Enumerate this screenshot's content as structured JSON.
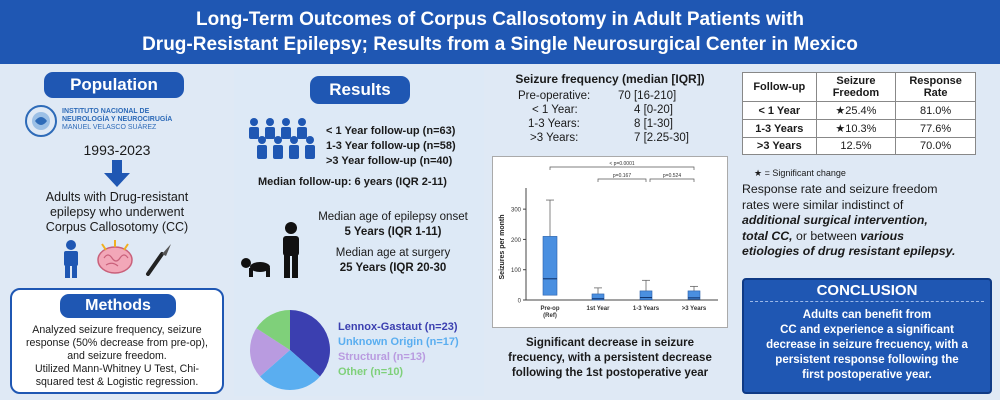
{
  "header": {
    "title_line1": "Long-Term Outcomes of Corpus Callosotomy in Adult Patients with",
    "title_line2": "Drug-Resistant Epilepsy; Results from a Single Neurosurgical Center in Mexico"
  },
  "population": {
    "heading": "Population",
    "logo_line1": "INSTITUTO NACIONAL DE",
    "logo_line2": "NEUROLOGÍA Y NEUROCIRUGÍA",
    "logo_line3": "MANUEL VELASCO SUÁREZ",
    "years": "1993-2023",
    "desc_line1": "Adults with Drug-resistant",
    "desc_line2": "epilepsy who underwent",
    "desc_line3": "Corpus Callosotomy (CC)"
  },
  "methods": {
    "heading": "Methods",
    "line1": "Analyzed seizure frequency, seizure",
    "line2": "response (50% decrease from pre-op),",
    "line3": "and seizure freedom.",
    "line4": "Utilized Mann-Whitney U Test, Chi-",
    "line5": "squared test & Logistic regression."
  },
  "results": {
    "heading": "Results",
    "fu1": "< 1 Year follow-up (n=63)",
    "fu2": "1-3 Year follow-up (n=58)",
    "fu3": ">3 Year follow-up (n=40)",
    "median_fu": "Median follow-up: 6 years (IQR 2-11)",
    "onset_label": "Median age of epilepsy onset",
    "onset_value": "5 Years (IQR 1-11)",
    "surgery_label": "Median age at surgery",
    "surgery_value": "25 Years (IQR 20-30",
    "colors": {
      "lennox": "#3b3fb0",
      "unknown": "#5aaef0",
      "structural": "#b99be0",
      "other": "#7fd07a"
    }
  },
  "chart_data": {
    "type": "pie",
    "slices": [
      {
        "label": "Lennox-Gastaut (n=23)",
        "value": 23
      },
      {
        "label": "Unknown Origin (n=17)",
        "value": 17
      },
      {
        "label": "Structural (n=13)",
        "value": 13
      },
      {
        "label": "Other (n=10)",
        "value": 10
      }
    ]
  },
  "seizure_freq": {
    "heading": "Seizure frequency (median [IQR])",
    "rows": [
      {
        "label": "Pre-operative:",
        "value": "70 [16-210]"
      },
      {
        "label": "< 1 Year:",
        "value": "4 [0-20]"
      },
      {
        "label": "1-3 Years:",
        "value": "8 [1-30]"
      },
      {
        "label": ">3 Years:",
        "value": "7 [2.25-30]"
      }
    ]
  },
  "boxplot": {
    "type": "box",
    "ylabel": "Seizures per month",
    "yticks": [
      "0",
      "100",
      "200",
      "300"
    ],
    "ylim": [
      0,
      350
    ],
    "categories": [
      "Pre-op\n(Ref)",
      "1st Year",
      "1-3 Years",
      ">3 Years"
    ],
    "cat_labels": [
      "Pre-op",
      "(Ref)",
      "1st Year",
      "1-3 Years",
      ">3 Years"
    ],
    "boxes": [
      {
        "q1": 16,
        "median": 70,
        "q3": 210,
        "whisker_low": 0,
        "whisker_high": 330
      },
      {
        "q1": 0,
        "median": 4,
        "q3": 20,
        "whisker_low": 0,
        "whisker_high": 40
      },
      {
        "q1": 1,
        "median": 8,
        "q3": 30,
        "whisker_low": 0,
        "whisker_high": 65
      },
      {
        "q1": 2.25,
        "median": 7,
        "q3": 30,
        "whisker_low": 0,
        "whisker_high": 45
      }
    ],
    "sig_all": "< p=0.0001",
    "sig_12": "p=0.167",
    "sig_23": "p=0.524",
    "color": "#4a8fe0"
  },
  "boxplot_caption": {
    "line1": "Significant decrease in seizure",
    "line2": "frecuency, with a persistent decrease",
    "line3": "following the 1st postoperative year"
  },
  "response_table": {
    "headers": [
      "Follow-up",
      "Seizure Freedom",
      "Response Rate"
    ],
    "rows": [
      {
        "fu": "< 1 Year",
        "sf": "25.4%",
        "sf_star": true,
        "rr": "81.0%"
      },
      {
        "fu": "1-3 Years",
        "sf": "10.3%",
        "sf_star": true,
        "rr": "77.6%"
      },
      {
        "fu": ">3 Years",
        "sf": "12.5%",
        "sf_star": false,
        "rr": "70.0%"
      }
    ],
    "star": "★",
    "legend": "= Significant change"
  },
  "response_text": {
    "p1": "Response rate and seizure freedom",
    "p2": "rates were similar indistinct of",
    "p3a": "additional surgical intervention,",
    "p4a": "total CC,",
    "p4b": " or ",
    "p4c": "between",
    "p4d": "various",
    "p5": "etiologies of drug resistant epilepsy."
  },
  "conclusion": {
    "heading": "CONCLUSION",
    "line1": "Adults can benefit from",
    "line2": "CC and experience a significant",
    "line3": "decrease in seizure frecuency, with a",
    "line4": "persistent response following the",
    "line5": "first postoperative year."
  }
}
